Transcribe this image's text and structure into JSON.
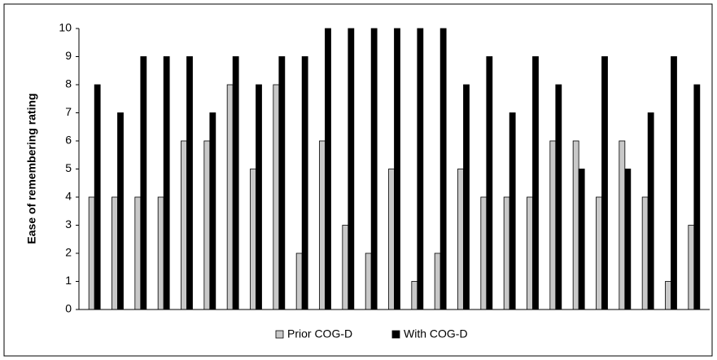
{
  "chart_data": {
    "type": "bar",
    "y_label": "Ease of remembering rating",
    "categories": [
      null,
      null,
      null,
      null,
      null,
      null,
      null,
      null,
      null,
      null,
      null,
      null,
      null,
      null,
      null,
      null,
      null,
      null,
      null,
      null,
      null,
      null,
      null,
      null,
      null,
      null,
      null
    ],
    "series": [
      {
        "name": "Prior COG-D",
        "color": "#c8c8c8",
        "values": [
          4,
          4,
          4,
          4,
          6,
          6,
          8,
          5,
          8,
          2,
          6,
          3,
          2,
          5,
          1,
          2,
          5,
          4,
          4,
          4,
          6,
          6,
          4,
          6,
          4,
          1,
          3
        ]
      },
      {
        "name": "With COG-D",
        "color": "#000000",
        "values": [
          8,
          7,
          9,
          9,
          9,
          7,
          9,
          8,
          9,
          9,
          10,
          10,
          10,
          10,
          10,
          10,
          8,
          9,
          7,
          9,
          8,
          5,
          9,
          5,
          7,
          9,
          8
        ]
      }
    ],
    "ylim": [
      0,
      10
    ],
    "yticks": [
      0,
      1,
      2,
      3,
      4,
      5,
      6,
      7,
      8,
      9,
      10
    ],
    "grid": false,
    "legend": "bottom"
  }
}
